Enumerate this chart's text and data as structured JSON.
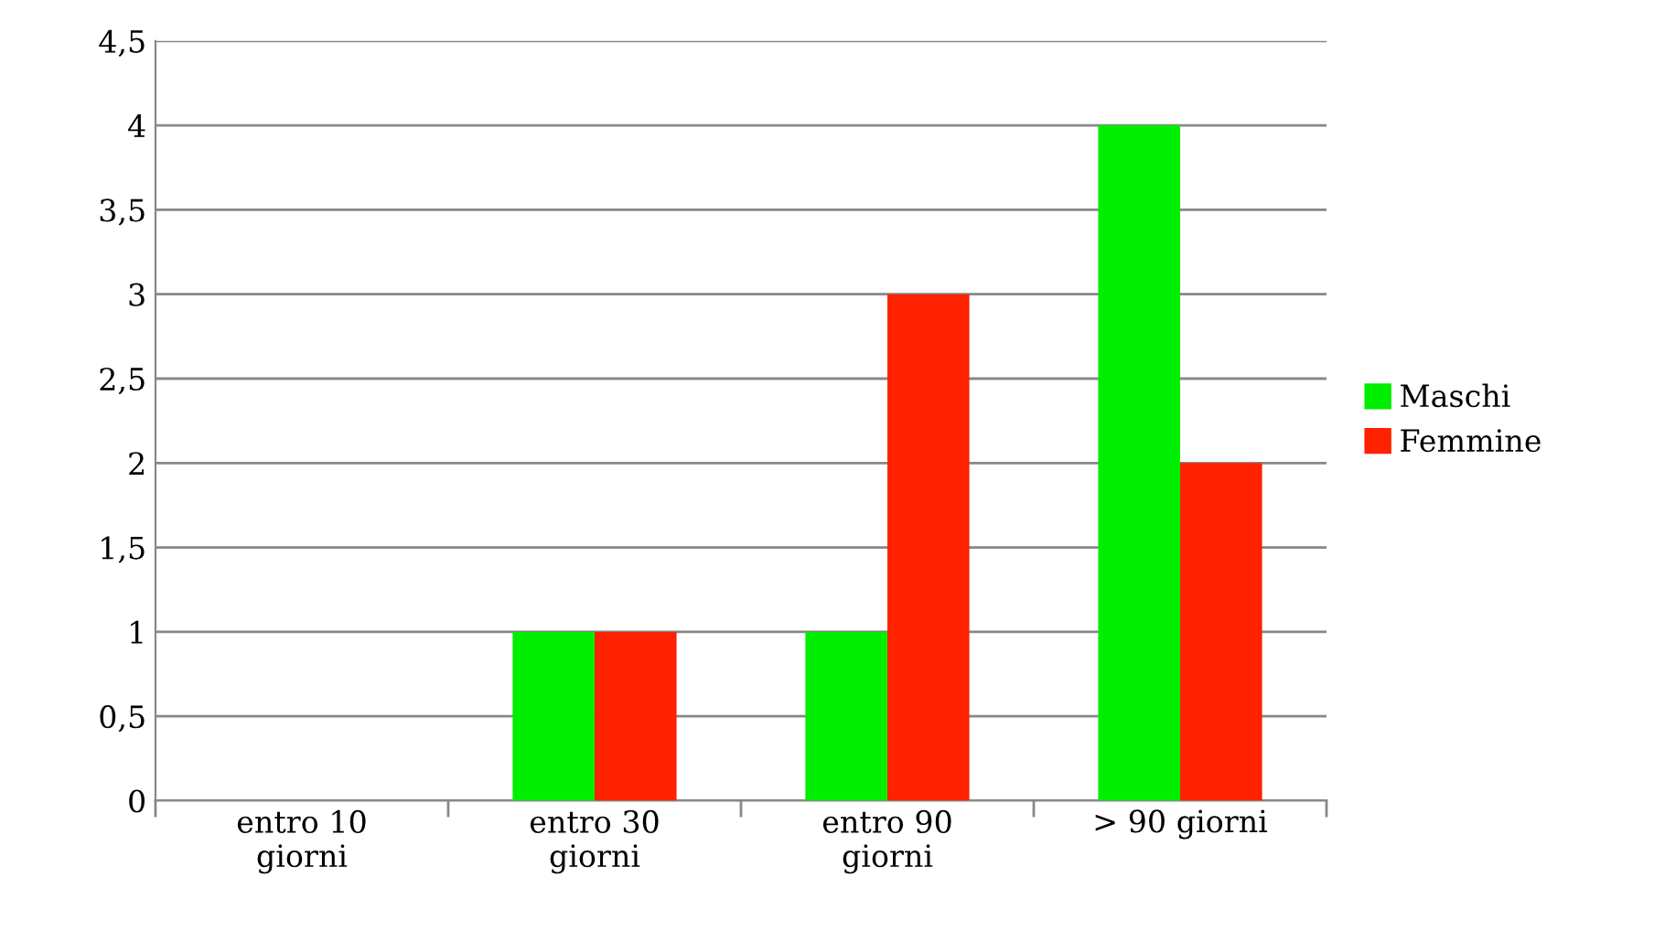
{
  "chart_data": {
    "type": "bar",
    "categories": [
      "entro 10\ngiorni",
      "entro 30\ngiorni",
      "entro 90\ngiorni",
      "> 90 giorni"
    ],
    "series": [
      {
        "name": "Maschi",
        "color": "#00ee00",
        "values": [
          0,
          1,
          1,
          4
        ]
      },
      {
        "name": "Femmine",
        "color": "#ff2200",
        "values": [
          0,
          1,
          3,
          2
        ]
      }
    ],
    "ylim": [
      0,
      4.5
    ],
    "yticks": [
      0,
      {
        "value": 0.5,
        "label": "0,5"
      },
      1,
      {
        "value": 1.5,
        "label": "1,5"
      },
      2,
      {
        "value": 2.5,
        "label": "2,5"
      },
      3,
      {
        "value": 3.5,
        "label": "3,5"
      },
      4,
      {
        "value": 4.5,
        "label": "4,5"
      }
    ],
    "grid": "y",
    "legend": "right"
  }
}
